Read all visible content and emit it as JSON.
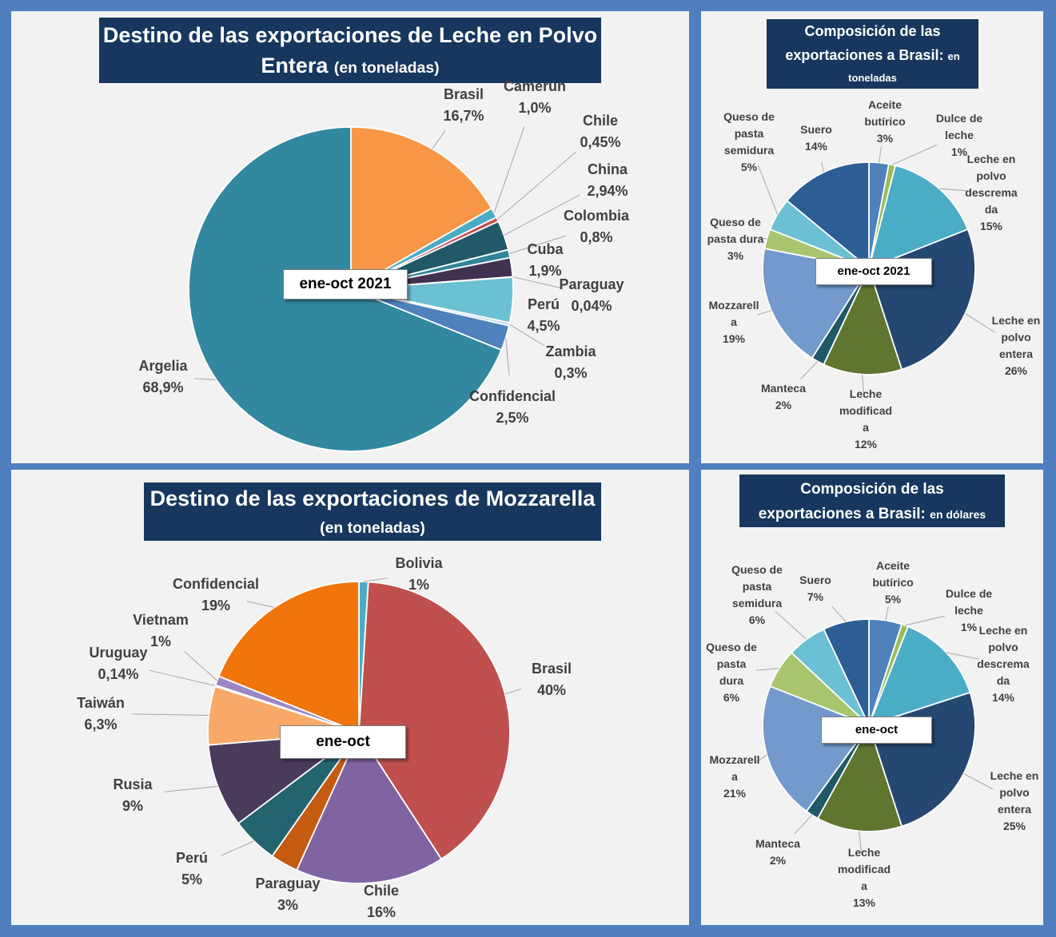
{
  "colors": {
    "frame": "#4f7fbf",
    "panel": "#f2f2f2",
    "title_bg": "#17375e"
  },
  "chart_data": [
    {
      "type": "pie",
      "title": "Destino de las exportaciones de Leche en Polvo Entera",
      "title_line1": "Destino de las exportaciones de Leche en Polvo",
      "title_line2": "Entera",
      "subtitle": "(en toneladas)",
      "center_label": "ene-oct 2021",
      "slices": [
        {
          "name": "Brasil",
          "label": "16,7%",
          "value": 16.7,
          "color": "#f79646"
        },
        {
          "name": "Camerún",
          "label": "1,0%",
          "value": 1.0,
          "color": "#4bacc6"
        },
        {
          "name": "Chile",
          "label": "0,45%",
          "value": 0.45,
          "color": "#c0504d"
        },
        {
          "name": "China",
          "label": "2,94%",
          "value": 2.94,
          "color": "#215968"
        },
        {
          "name": "Colombia",
          "label": "0,8%",
          "value": 0.8,
          "color": "#31849b"
        },
        {
          "name": "Cuba",
          "label": "1,9%",
          "value": 1.9,
          "color": "#403151"
        },
        {
          "name": "Paraguay",
          "label": "0,04%",
          "value": 0.04,
          "color": "#7030a0"
        },
        {
          "name": "Perú",
          "label": "4,5%",
          "value": 4.5,
          "color": "#6cc0d4"
        },
        {
          "name": "Zambia",
          "label": "0,3%",
          "value": 0.3,
          "color": "#c6d9f1"
        },
        {
          "name": "Confidencial",
          "label": "2,5%",
          "value": 2.5,
          "color": "#4f81bd"
        },
        {
          "name": "Argelia",
          "label": "68,9%",
          "value": 68.9,
          "color": "#31889f"
        }
      ]
    },
    {
      "type": "pie",
      "title": "Composición de las exportaciones a Brasil: en toneladas",
      "title_line1": "Composición  de las",
      "title_line2": "exportaciones  a Brasil:",
      "title_small": "en",
      "title_line3": "toneladas",
      "center_label": "ene-oct 2021",
      "slices": [
        {
          "name": "Aceite butírico",
          "label": "3%",
          "value": 3,
          "color": "#4f81bd"
        },
        {
          "name": "Dulce de leche",
          "label": "1%",
          "value": 1,
          "color": "#9bbb59"
        },
        {
          "name": "Leche en polvo descremada",
          "label": "15%",
          "value": 15,
          "color": "#4bacc6"
        },
        {
          "name": "Leche en polvo entera",
          "label": "26%",
          "value": 26,
          "color": "#254872"
        },
        {
          "name": "Leche modificada",
          "label": "12%",
          "value": 12,
          "color": "#5f7530"
        },
        {
          "name": "Manteca",
          "label": "2%",
          "value": 2,
          "color": "#205867"
        },
        {
          "name": "Mozzarella",
          "label": "19%",
          "value": 19,
          "color": "#7399cd"
        },
        {
          "name": "Queso de pasta dura",
          "label": "3%",
          "value": 3,
          "color": "#a9c46e"
        },
        {
          "name": "Queso de pasta semidura",
          "label": "5%",
          "value": 5,
          "color": "#6cc0d4"
        },
        {
          "name": "Suero",
          "label": "14%",
          "value": 14,
          "color": "#2c5d95"
        }
      ]
    },
    {
      "type": "pie",
      "title": "Destino de las exportaciones de Mozzarella",
      "subtitle": "(en toneladas)",
      "center_label": "ene-oct",
      "slices": [
        {
          "name": "Bolivia",
          "label": "1%",
          "value": 1,
          "color": "#4bacc6"
        },
        {
          "name": "Brasil",
          "label": "40%",
          "value": 40,
          "color": "#c0504d"
        },
        {
          "name": "Chile",
          "label": "16%",
          "value": 16,
          "color": "#8064a2"
        },
        {
          "name": "Paraguay",
          "label": "3%",
          "value": 3,
          "color": "#c55a11"
        },
        {
          "name": "Perú",
          "label": "5%",
          "value": 5,
          "color": "#23646f"
        },
        {
          "name": "Rusia",
          "label": "9%",
          "value": 9,
          "color": "#4a3a5c"
        },
        {
          "name": "Taiwán",
          "label": "6,3%",
          "value": 6.3,
          "color": "#f8a96a"
        },
        {
          "name": "Uruguay",
          "label": "0,14%",
          "value": 0.14,
          "color": "#4f81bd"
        },
        {
          "name": "Vietnam",
          "label": "1%",
          "value": 1,
          "color": "#9a87c3"
        },
        {
          "name": "Confidencial",
          "label": "19%",
          "value": 19,
          "color": "#f2750c"
        }
      ]
    },
    {
      "type": "pie",
      "title": "Composición de las exportaciones a Brasil: en dólares",
      "title_line1": "Composición  de las",
      "title_line2": "exportaciones  a Brasil:",
      "title_small": "en dólares",
      "center_label": "ene-oct",
      "slices": [
        {
          "name": "Aceite butírico",
          "label": "5%",
          "value": 5,
          "color": "#4f81bd"
        },
        {
          "name": "Dulce de leche",
          "label": "1%",
          "value": 1,
          "color": "#9bbb59"
        },
        {
          "name": "Leche en polvo descremada",
          "label": "14%",
          "value": 14,
          "color": "#4bacc6"
        },
        {
          "name": "Leche en polvo entera",
          "label": "25%",
          "value": 25,
          "color": "#254872"
        },
        {
          "name": "Leche modificada",
          "label": "13%",
          "value": 13,
          "color": "#5f7530"
        },
        {
          "name": "Manteca",
          "label": "2%",
          "value": 2,
          "color": "#205867"
        },
        {
          "name": "Mozzarella",
          "label": "21%",
          "value": 21,
          "color": "#7399cd"
        },
        {
          "name": "Queso de pasta dura",
          "label": "6%",
          "value": 6,
          "color": "#a9c46e"
        },
        {
          "name": "Queso de pasta semidura",
          "label": "6%",
          "value": 6,
          "color": "#6cc0d4"
        },
        {
          "name": "Suero",
          "label": "7%",
          "value": 7,
          "color": "#2c5d95"
        }
      ]
    }
  ]
}
